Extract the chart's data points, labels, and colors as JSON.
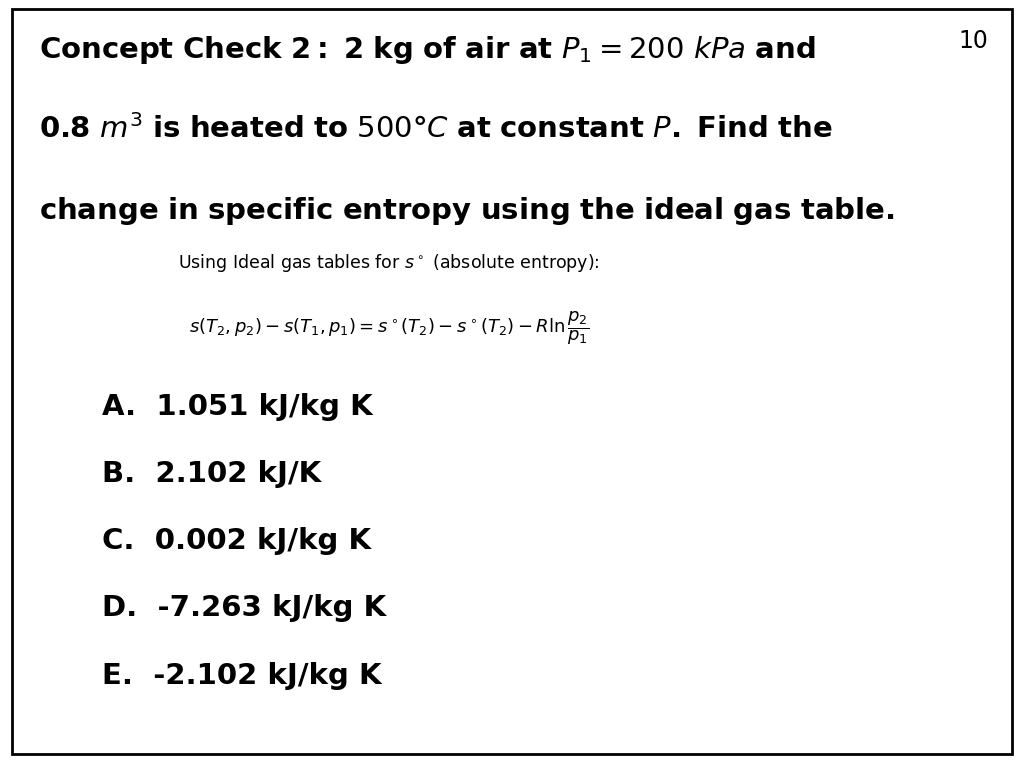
{
  "page_number": "10",
  "background_color": "#ffffff",
  "border_color": "#000000",
  "text_color": "#000000",
  "title_fontsize": 21,
  "subtitle_fontsize": 12.5,
  "formula_fontsize": 13,
  "options_fontsize": 21,
  "options": [
    "A.  1.051 kJ/kg K",
    "B.  2.102 kJ/K",
    "C.  0.002 kJ/kg K",
    "D.  -7.263 kJ/kg K",
    "E.  -2.102 kJ/kg K"
  ],
  "title_line1_bold": "Concept Check 2: 2 kg of air at ",
  "title_line1_math": "$P_1 = 200\\ kPa$",
  "title_line1_bold2": " and",
  "title_line2_bold": "0.8 ",
  "title_line2_math": "$m^3$",
  "title_line2_bold2": " is heated to ",
  "title_line2_math2": "$500°C$",
  "title_line2_bold3": " at constant ",
  "title_line2_math3": "$P$",
  "title_line2_bold4": ". Find the",
  "title_line3": "change in specific entropy using the ideal gas table."
}
